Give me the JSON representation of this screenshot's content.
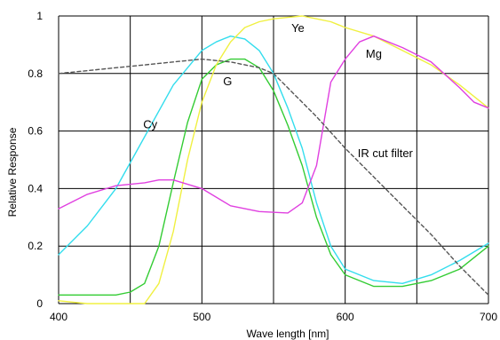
{
  "chart_data": {
    "type": "line",
    "xlabel": "Wave length [nm]",
    "ylabel": "Relative Response",
    "xlim": [
      400,
      700
    ],
    "ylim": [
      0,
      1
    ],
    "x_ticks": [
      400,
      500,
      600,
      700
    ],
    "x_tick_labels": [
      "400",
      "500",
      "600",
      "700"
    ],
    "y_ticks": [
      0,
      0.2,
      0.4,
      0.6,
      0.8,
      1
    ],
    "y_tick_labels": [
      "0",
      "0.2",
      "0.4",
      "0.6",
      "0.8",
      "1"
    ],
    "grid": true,
    "series": [
      {
        "name": "Cy",
        "color": "#33dded",
        "dashed": false,
        "points": [
          [
            400,
            0.17
          ],
          [
            420,
            0.27
          ],
          [
            440,
            0.4
          ],
          [
            460,
            0.58
          ],
          [
            480,
            0.76
          ],
          [
            500,
            0.88
          ],
          [
            510,
            0.91
          ],
          [
            520,
            0.93
          ],
          [
            530,
            0.92
          ],
          [
            540,
            0.88
          ],
          [
            550,
            0.8
          ],
          [
            560,
            0.68
          ],
          [
            570,
            0.54
          ],
          [
            580,
            0.35
          ],
          [
            590,
            0.2
          ],
          [
            600,
            0.12
          ],
          [
            620,
            0.08
          ],
          [
            640,
            0.07
          ],
          [
            660,
            0.1
          ],
          [
            680,
            0.15
          ],
          [
            700,
            0.21
          ]
        ]
      },
      {
        "name": "G",
        "color": "#33cc33",
        "dashed": false,
        "points": [
          [
            400,
            0.03
          ],
          [
            420,
            0.03
          ],
          [
            440,
            0.03
          ],
          [
            450,
            0.04
          ],
          [
            460,
            0.07
          ],
          [
            470,
            0.2
          ],
          [
            480,
            0.42
          ],
          [
            490,
            0.63
          ],
          [
            500,
            0.78
          ],
          [
            510,
            0.83
          ],
          [
            520,
            0.85
          ],
          [
            530,
            0.85
          ],
          [
            540,
            0.82
          ],
          [
            550,
            0.74
          ],
          [
            560,
            0.62
          ],
          [
            570,
            0.48
          ],
          [
            580,
            0.3
          ],
          [
            590,
            0.17
          ],
          [
            600,
            0.1
          ],
          [
            620,
            0.06
          ],
          [
            640,
            0.06
          ],
          [
            660,
            0.08
          ],
          [
            680,
            0.12
          ],
          [
            700,
            0.2
          ]
        ]
      },
      {
        "name": "Ye",
        "color": "#f0f040",
        "dashed": false,
        "points": [
          [
            400,
            0.01
          ],
          [
            420,
            0.0
          ],
          [
            440,
            0.0
          ],
          [
            460,
            0.0
          ],
          [
            470,
            0.07
          ],
          [
            480,
            0.25
          ],
          [
            490,
            0.5
          ],
          [
            500,
            0.7
          ],
          [
            510,
            0.83
          ],
          [
            520,
            0.91
          ],
          [
            530,
            0.96
          ],
          [
            540,
            0.98
          ],
          [
            550,
            0.99
          ],
          [
            560,
            0.995
          ],
          [
            570,
            1.0
          ],
          [
            580,
            0.99
          ],
          [
            590,
            0.98
          ],
          [
            600,
            0.96
          ],
          [
            620,
            0.93
          ],
          [
            640,
            0.88
          ],
          [
            660,
            0.83
          ],
          [
            680,
            0.76
          ],
          [
            700,
            0.68
          ]
        ]
      },
      {
        "name": "Mg",
        "color": "#e040e0",
        "dashed": false,
        "points": [
          [
            400,
            0.33
          ],
          [
            420,
            0.38
          ],
          [
            440,
            0.41
          ],
          [
            460,
            0.42
          ],
          [
            470,
            0.43
          ],
          [
            480,
            0.43
          ],
          [
            500,
            0.4
          ],
          [
            520,
            0.34
          ],
          [
            540,
            0.32
          ],
          [
            560,
            0.315
          ],
          [
            570,
            0.35
          ],
          [
            580,
            0.48
          ],
          [
            590,
            0.77
          ],
          [
            600,
            0.85
          ],
          [
            610,
            0.91
          ],
          [
            620,
            0.93
          ],
          [
            640,
            0.89
          ],
          [
            660,
            0.84
          ],
          [
            680,
            0.75
          ],
          [
            690,
            0.7
          ],
          [
            700,
            0.68
          ]
        ]
      },
      {
        "name": "IR cut filter",
        "color": "#555555",
        "dashed": true,
        "points": [
          [
            400,
            0.8
          ],
          [
            420,
            0.81
          ],
          [
            440,
            0.82
          ],
          [
            460,
            0.83
          ],
          [
            480,
            0.84
          ],
          [
            500,
            0.85
          ],
          [
            520,
            0.84
          ],
          [
            540,
            0.82
          ],
          [
            550,
            0.8
          ],
          [
            560,
            0.75
          ],
          [
            580,
            0.65
          ],
          [
            600,
            0.54
          ],
          [
            620,
            0.44
          ],
          [
            640,
            0.34
          ],
          [
            660,
            0.24
          ],
          [
            680,
            0.13
          ],
          [
            700,
            0.03
          ]
        ]
      }
    ],
    "annotations": [
      {
        "text": "Ye",
        "x": 567,
        "y": 0.945
      },
      {
        "text": "Mg",
        "x": 620,
        "y": 0.855
      },
      {
        "text": "G",
        "x": 518,
        "y": 0.76
      },
      {
        "text": "Cy",
        "x": 464,
        "y": 0.61
      },
      {
        "text": "IR cut filter",
        "x": 628,
        "y": 0.51
      }
    ]
  }
}
